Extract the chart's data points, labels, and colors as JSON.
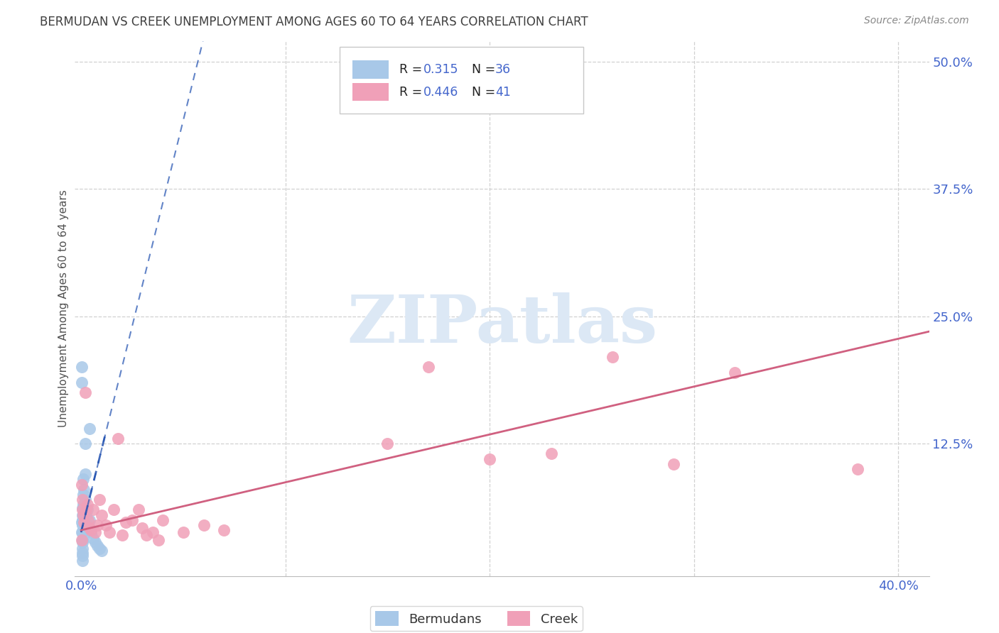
{
  "title": "BERMUDAN VS CREEK UNEMPLOYMENT AMONG AGES 60 TO 64 YEARS CORRELATION CHART",
  "source": "Source: ZipAtlas.com",
  "ylabel": "Unemployment Among Ages 60 to 64 years",
  "xlim": [
    -0.003,
    0.415
  ],
  "ylim": [
    -0.005,
    0.52
  ],
  "ytick_vals": [
    0.0,
    0.125,
    0.25,
    0.375,
    0.5
  ],
  "ytick_labels": [
    "",
    "12.5%",
    "25.0%",
    "37.5%",
    "50.0%"
  ],
  "xtick_vals": [
    0.0,
    0.1,
    0.2,
    0.3,
    0.4
  ],
  "xtick_labels": [
    "0.0%",
    "",
    "",
    "",
    "40.0%"
  ],
  "bermudans_color": "#a8c8e8",
  "creek_color": "#f0a0b8",
  "bermudans_trend_color": "#2050b0",
  "creek_trend_color": "#d06080",
  "bermudans_R": 0.315,
  "bermudans_N": 36,
  "creek_R": 0.446,
  "creek_N": 41,
  "watermark_color": "#dce8f5",
  "background_color": "#ffffff",
  "grid_color": "#cccccc",
  "title_color": "#404040",
  "axis_label_color": "#505050",
  "tick_label_color": "#4466cc",
  "legend_val_color": "#4466cc",
  "legend_label_color": "#333333",
  "bermudans_x": [
    0.0005,
    0.0005,
    0.0005,
    0.0005,
    0.0005,
    0.0005,
    0.0008,
    0.0008,
    0.001,
    0.001,
    0.001,
    0.001,
    0.001,
    0.0015,
    0.0015,
    0.002,
    0.002,
    0.002,
    0.0025,
    0.003,
    0.003,
    0.004,
    0.004,
    0.005,
    0.006,
    0.007,
    0.008,
    0.009,
    0.01,
    0.0003,
    0.0003,
    0.0003,
    0.0004,
    0.0006,
    0.0006,
    0.0007
  ],
  "bermudans_y": [
    0.055,
    0.045,
    0.038,
    0.03,
    0.022,
    0.015,
    0.062,
    0.05,
    0.09,
    0.075,
    0.065,
    0.055,
    0.048,
    0.08,
    0.06,
    0.125,
    0.095,
    0.07,
    0.055,
    0.06,
    0.045,
    0.14,
    0.05,
    0.038,
    0.032,
    0.028,
    0.025,
    0.022,
    0.02,
    0.2,
    0.185,
    0.048,
    0.038,
    0.028,
    0.018,
    0.01
  ],
  "creek_x": [
    0.0004,
    0.0006,
    0.0008,
    0.001,
    0.0015,
    0.002,
    0.0025,
    0.003,
    0.0035,
    0.004,
    0.005,
    0.006,
    0.007,
    0.008,
    0.009,
    0.01,
    0.012,
    0.014,
    0.016,
    0.018,
    0.02,
    0.022,
    0.025,
    0.028,
    0.03,
    0.032,
    0.035,
    0.038,
    0.04,
    0.05,
    0.06,
    0.07,
    0.15,
    0.17,
    0.2,
    0.23,
    0.26,
    0.29,
    0.32,
    0.38,
    0.0003
  ],
  "creek_y": [
    0.085,
    0.07,
    0.06,
    0.055,
    0.048,
    0.175,
    0.06,
    0.065,
    0.05,
    0.042,
    0.04,
    0.06,
    0.038,
    0.045,
    0.07,
    0.055,
    0.045,
    0.038,
    0.06,
    0.13,
    0.035,
    0.048,
    0.05,
    0.06,
    0.042,
    0.035,
    0.038,
    0.03,
    0.05,
    0.038,
    0.045,
    0.04,
    0.125,
    0.2,
    0.11,
    0.115,
    0.21,
    0.105,
    0.195,
    0.1,
    0.03
  ],
  "bermudans_trend_x": [
    0.0,
    0.012
  ],
  "bermudans_trend_y": [
    0.038,
    0.135
  ],
  "creek_trend_x": [
    0.0,
    0.415
  ],
  "creek_trend_y": [
    0.04,
    0.235
  ]
}
